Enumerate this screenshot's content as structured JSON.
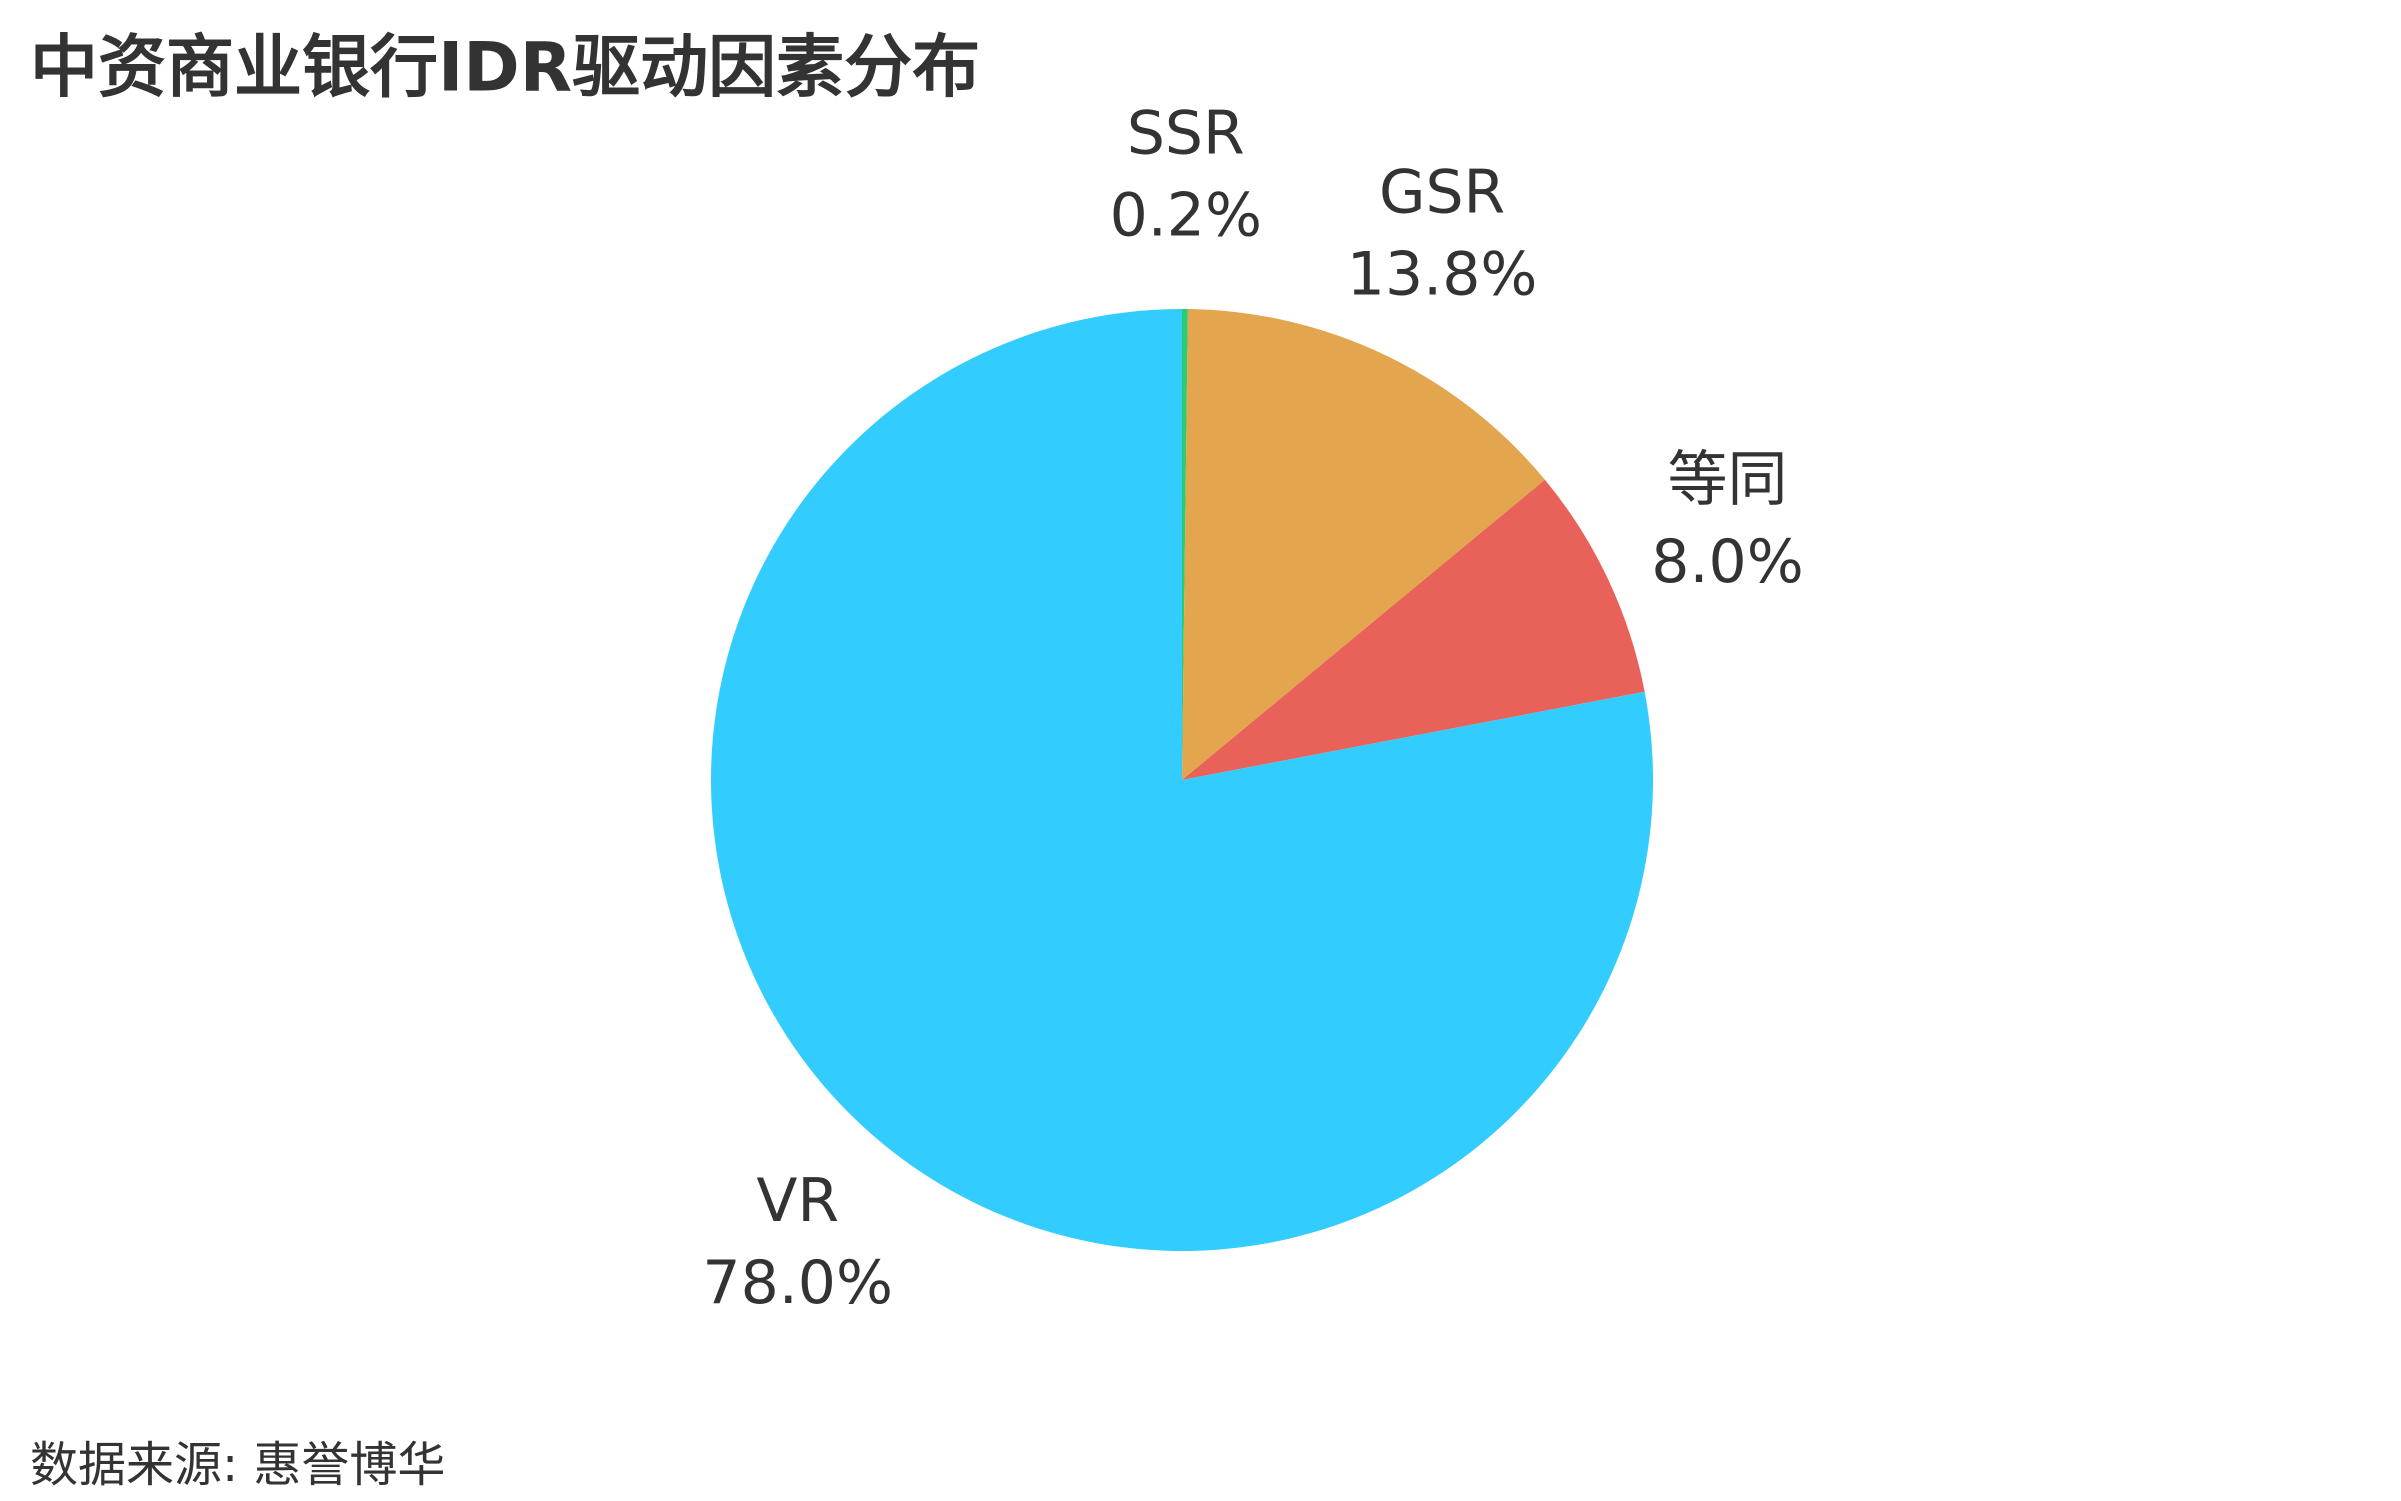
{
  "chart_data": {
    "type": "pie",
    "title": "中资商业银行IDR驱动因素分布",
    "categories": [
      "SSR",
      "GSR",
      "等同",
      "VR"
    ],
    "values": [
      0.2,
      13.8,
      8.0,
      78.0
    ],
    "value_labels": [
      "0.2%",
      "13.8%",
      "8.0%",
      "78.0%"
    ],
    "colors": [
      "#2ecc71",
      "#e3a54e",
      "#e8625a",
      "#33ccff"
    ],
    "source": "数据来源: 惠誉博华"
  }
}
